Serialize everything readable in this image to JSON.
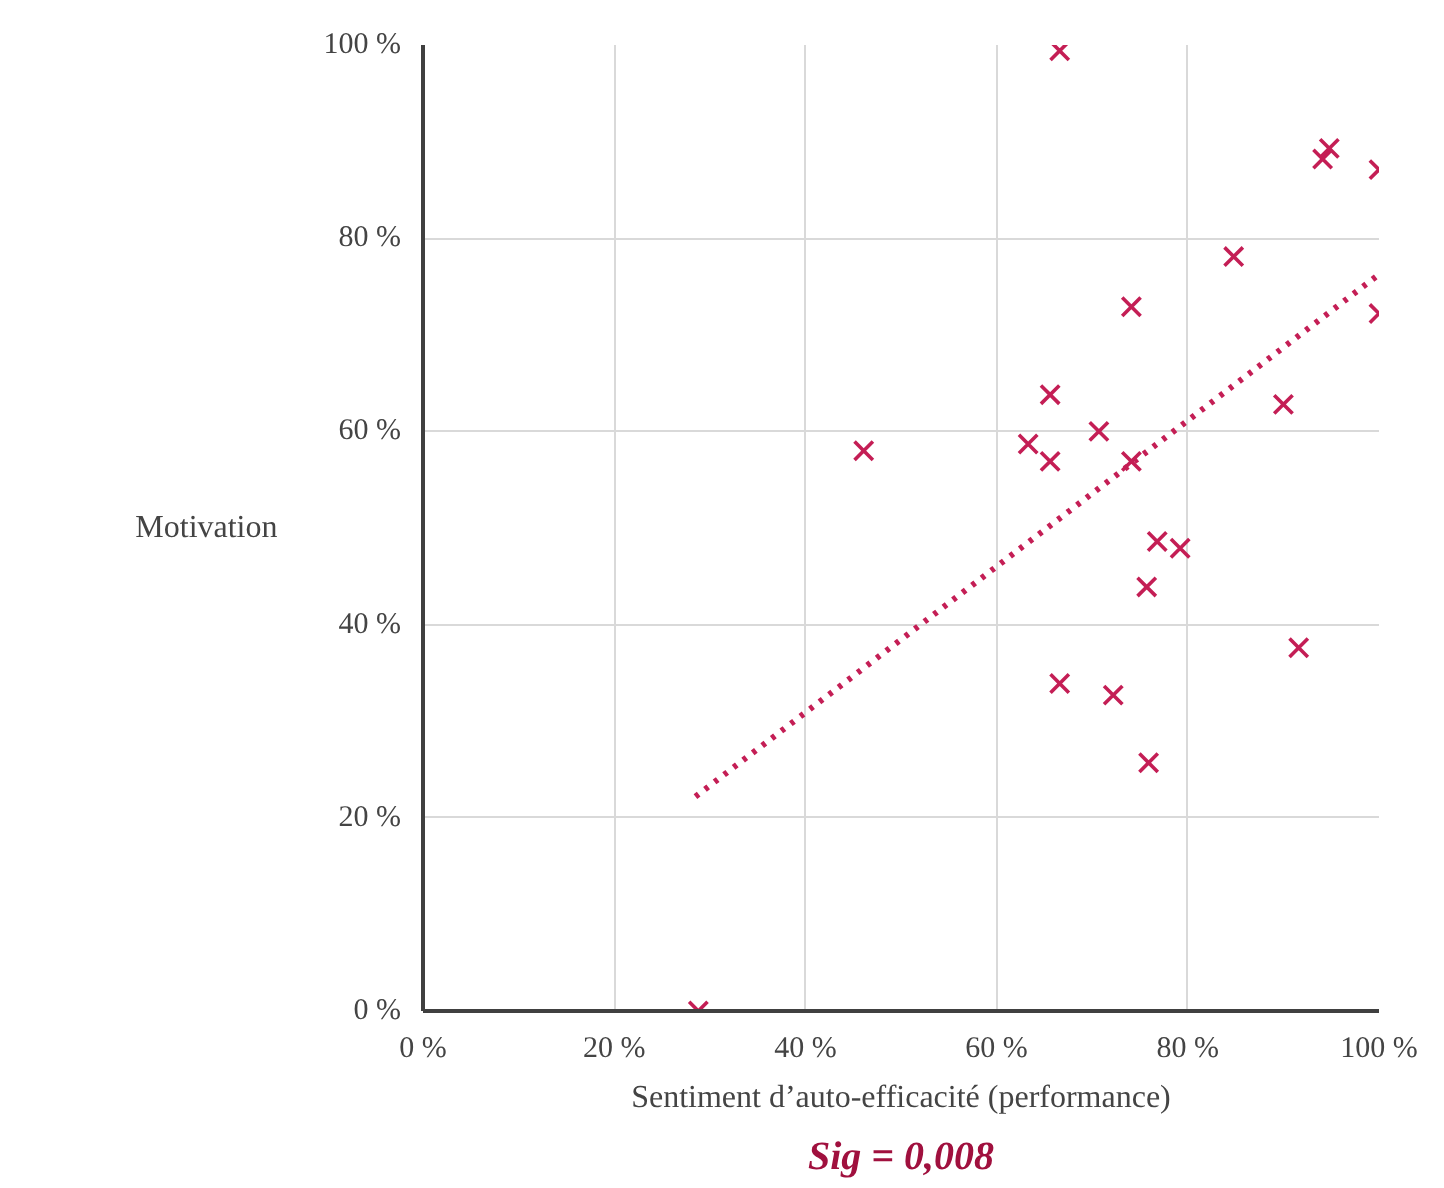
{
  "chart_data": {
    "type": "scatter",
    "xlabel": "Sentiment d’auto-efficacité (performance)",
    "ylabel": "Motivation",
    "annotations": [
      "Sig = 0,008"
    ],
    "xlim": [
      0,
      100
    ],
    "ylim": [
      0,
      100
    ],
    "xticks": [
      {
        "value": 0,
        "label": "0 %"
      },
      {
        "value": 20,
        "label": "20 %"
      },
      {
        "value": 40,
        "label": "40 %"
      },
      {
        "value": 60,
        "label": "60 %"
      },
      {
        "value": 80,
        "label": "80 %"
      },
      {
        "value": 100,
        "label": "100 %"
      }
    ],
    "yticks": [
      {
        "value": 0,
        "label": "0 %"
      },
      {
        "value": 20,
        "label": "20 %"
      },
      {
        "value": 40,
        "label": "40 %"
      },
      {
        "value": 60,
        "label": "60 %"
      },
      {
        "value": 80,
        "label": "80 %"
      },
      {
        "value": 100,
        "label": "100 %"
      }
    ],
    "grid": true,
    "series": [
      {
        "marker": "cross",
        "color": "#c41e55",
        "x": [
          66.6,
          94.1,
          94.8,
          100,
          84.8,
          74.1,
          100,
          65.6,
          90.0,
          46.1,
          63.3,
          65.6,
          70.7,
          74.1,
          76.8,
          79.2,
          75.7,
          91.6,
          66.6,
          72.2,
          75.9,
          28.8
        ],
        "values": [
          99.4,
          88.2,
          89.3,
          87.1,
          78.1,
          72.9,
          72.2,
          63.8,
          62.8,
          58.0,
          58.7,
          56.9,
          60.0,
          56.9,
          48.6,
          47.9,
          43.9,
          37.6,
          33.9,
          32.7,
          25.7,
          0
        ]
      },
      {
        "type": "line",
        "color": "#c41e55",
        "line_style": "dotted",
        "x": [
          28.5,
          99.8
        ],
        "values": [
          22.2,
          76.1
        ]
      }
    ]
  }
}
